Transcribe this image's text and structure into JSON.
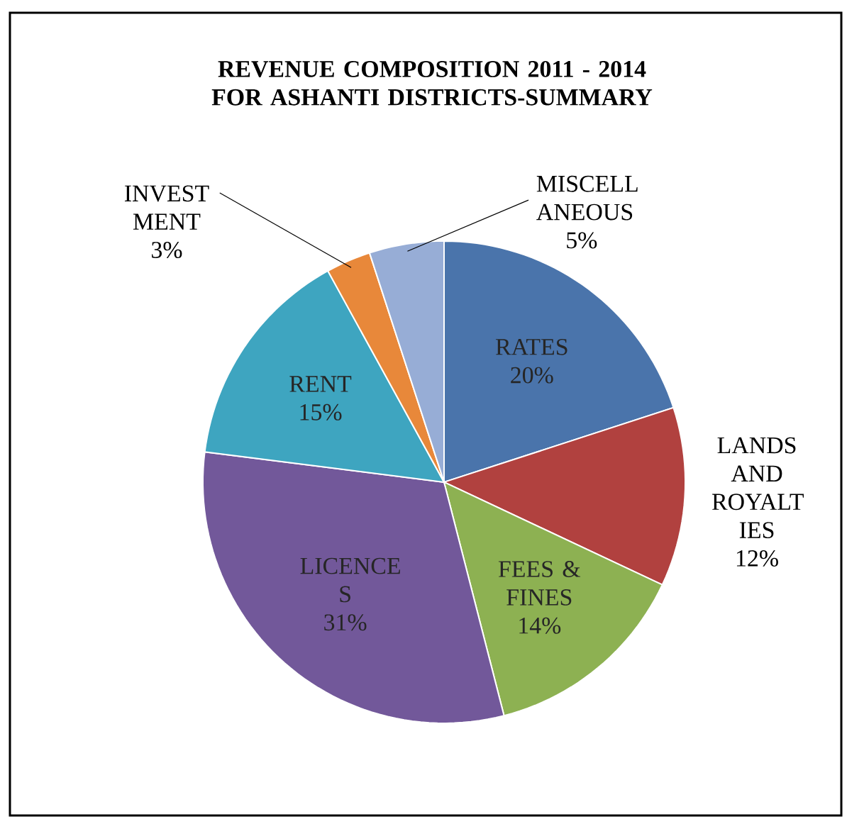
{
  "chart_data": {
    "type": "pie",
    "title": "REVENUE COMPOSITION 2011 - 2014 FOR ASHANTI DISTRICTS-SUMMARY",
    "categories": [
      "RATES",
      "LANDS AND ROYALT IES",
      "FEES & FINES",
      "LICENCE S",
      "RENT",
      "INVEST MENT",
      "MISCELL ANEOUS"
    ],
    "values": [
      20,
      12,
      14,
      31,
      15,
      3,
      5
    ],
    "value_labels": [
      "20%",
      "12%",
      "14%",
      "31%",
      "15%",
      "3%",
      "5%"
    ],
    "colors": [
      "#4a74ab",
      "#b1413f",
      "#8db152",
      "#72589a",
      "#3ea5c0",
      "#e8883a",
      "#97add6"
    ]
  }
}
